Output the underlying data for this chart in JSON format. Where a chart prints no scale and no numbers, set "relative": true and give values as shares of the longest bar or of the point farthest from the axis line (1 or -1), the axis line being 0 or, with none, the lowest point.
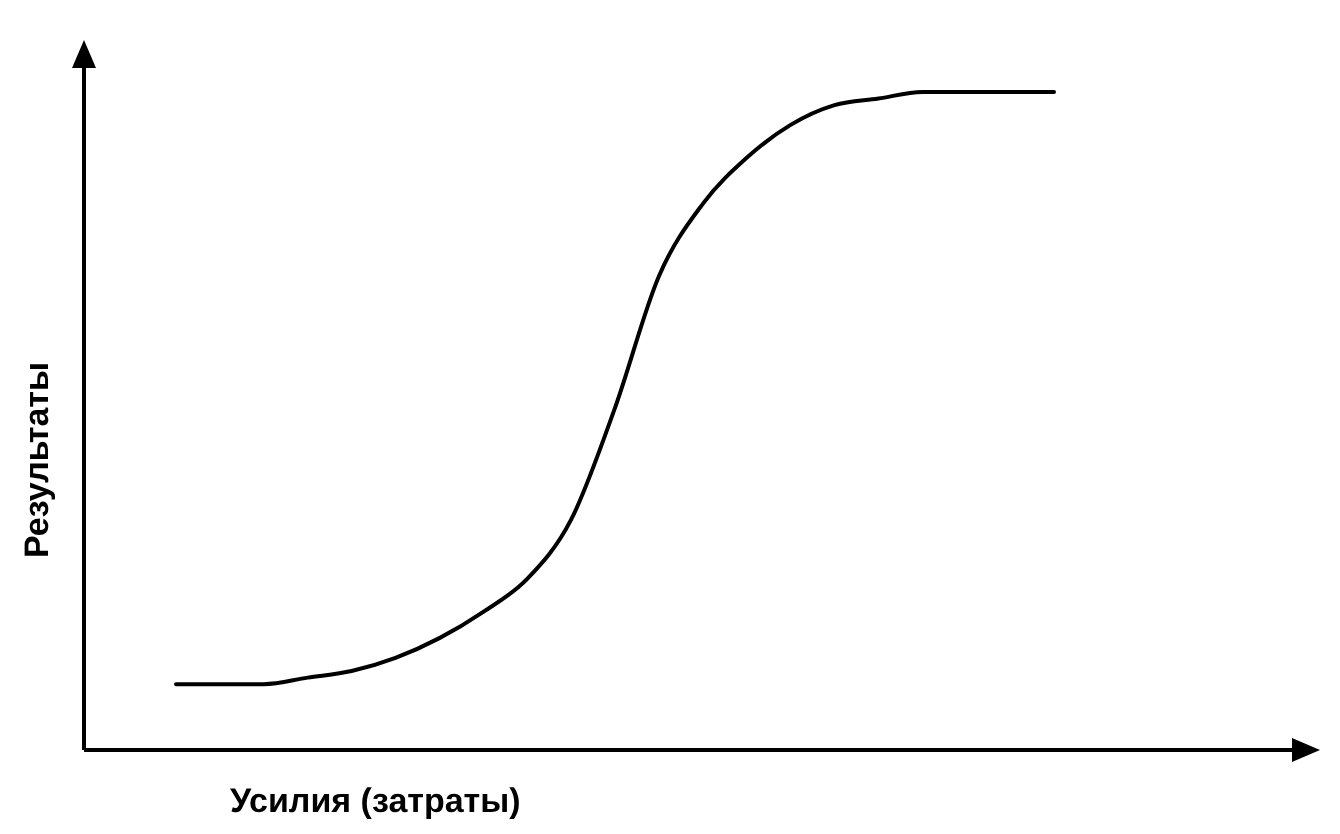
{
  "chart_data": {
    "type": "line",
    "xlabel": "Усилия (затраты)",
    "ylabel": "Результаты",
    "relative": true,
    "categories": [
      null,
      null,
      null,
      null,
      null,
      null,
      null,
      null,
      null,
      null,
      null,
      null,
      null,
      null,
      null,
      null,
      null,
      null,
      null,
      null,
      null
    ],
    "series": [
      {
        "color": "#000000",
        "values": [
          0.1,
          0.1,
          0.1,
          0.11,
          0.12,
          0.14,
          0.17,
          0.21,
          0.26,
          0.35,
          0.52,
          0.72,
          0.83,
          0.9,
          0.95,
          0.98,
          0.99,
          1,
          1,
          1,
          1
        ]
      }
    ]
  }
}
